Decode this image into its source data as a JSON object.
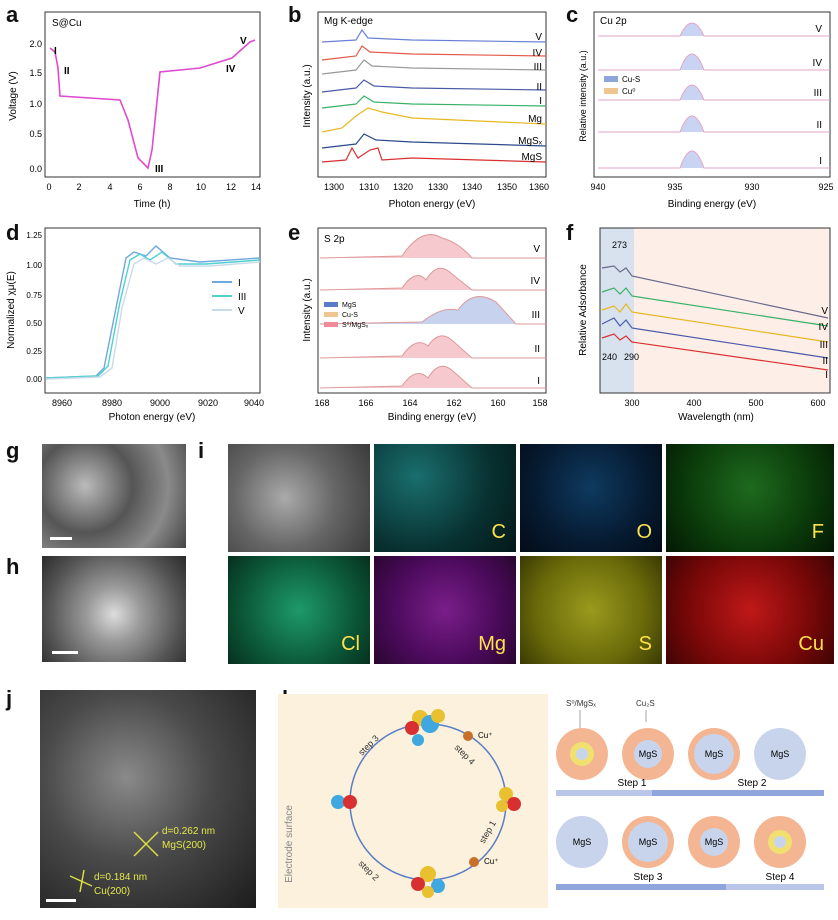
{
  "panels": {
    "a": {
      "label": "a",
      "tag": "S@Cu",
      "ylabel": "Voltage (V)",
      "xlabel": "Time (h)",
      "xticks": [
        "0",
        "2",
        "4",
        "6",
        "8",
        "10",
        "12",
        "14"
      ],
      "yticks": [
        "0.0",
        "0.5",
        "1.0",
        "1.5",
        "2.0"
      ],
      "points": [
        "I",
        "II",
        "III",
        "IV",
        "V"
      ]
    },
    "b": {
      "label": "b",
      "tag": "Mg K-edge",
      "ylabel": "Intensity (a.u.)",
      "xlabel": "Photon energy (eV)",
      "xticks": [
        "1300",
        "1310",
        "1320",
        "1330",
        "1340",
        "1350",
        "1360"
      ],
      "curves": [
        "V",
        "IV",
        "III",
        "II",
        "I",
        "Mg",
        "MgSₓ",
        "MgS"
      ]
    },
    "c": {
      "label": "c",
      "tag": "Cu 2p",
      "ylabel": "Relative intensity (a.u.)",
      "xlabel": "Binding energy (eV)",
      "xticks": [
        "940",
        "935",
        "930",
        "925"
      ],
      "curves": [
        "V",
        "IV",
        "III",
        "II",
        "I"
      ],
      "legend": [
        "Cu-S",
        "Cu⁰"
      ]
    },
    "d": {
      "label": "d",
      "ylabel": "Normalized χμ(E)",
      "xlabel": "Photon energy (eV)",
      "xticks": [
        "8960",
        "8980",
        "9000",
        "9020",
        "9040"
      ],
      "yticks": [
        "0.00",
        "0.25",
        "0.50",
        "0.75",
        "1.00",
        "1.25"
      ],
      "legend": [
        "I",
        "III",
        "V"
      ]
    },
    "e": {
      "label": "e",
      "tag": "S 2p",
      "ylabel": "Intensity (a.u.)",
      "xlabel": "Binding energy (eV)",
      "xticks": [
        "168",
        "166",
        "164",
        "162",
        "160",
        "158"
      ],
      "curves": [
        "V",
        "IV",
        "III",
        "II",
        "I"
      ],
      "legend": [
        "MgS",
        "Cu-S",
        "S⁰/MgSₓ"
      ]
    },
    "f": {
      "label": "f",
      "ylabel": "Relative Adsorbance",
      "xlabel": "Wavelength (nm)",
      "xticks": [
        "300",
        "400",
        "500",
        "600"
      ],
      "curves": [
        "V",
        "IV",
        "III",
        "II",
        "I"
      ],
      "annot": [
        "273",
        "240",
        "290"
      ]
    },
    "g": {
      "label": "g"
    },
    "h": {
      "label": "h"
    },
    "i": {
      "label": "i",
      "maps": [
        "C",
        "O",
        "F",
        "Cl",
        "Mg",
        "S",
        "Cu"
      ]
    },
    "j": {
      "label": "j",
      "d1": "d=0.262 nm",
      "p1": "MgS(200)",
      "d2": "d=0.184 nm",
      "p2": "Cu(200)"
    },
    "k": {
      "label": "k",
      "side": "Electrode surface",
      "steps": [
        "step 1",
        "step 2",
        "step 3",
        "step 4"
      ],
      "ion": "Cu⁺",
      "legend": [
        "S⁰/MgSₓ",
        "Cu₂S"
      ],
      "row1": {
        "labels": [
          "",
          "MgS",
          "MgS",
          "MgS"
        ],
        "arrows": [
          "Step 1",
          "Step 2"
        ]
      },
      "row2": {
        "labels": [
          "MgS",
          "MgS",
          "MgS",
          ""
        ],
        "arrows": [
          "Step 3",
          "Step 4"
        ]
      }
    }
  },
  "colors": {
    "pink": "#e04ad0",
    "curve": "#aa55aa"
  }
}
